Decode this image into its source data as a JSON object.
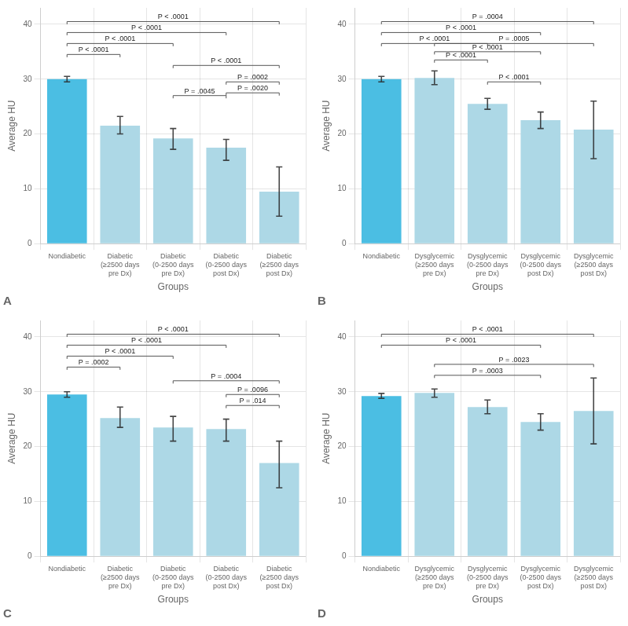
{
  "chart_data": [
    {
      "type": "bar",
      "title": "A",
      "ylabel": "Average HU",
      "xlabel": "Groups",
      "categories": [
        "Nondiabetic",
        "Diabetic\n(≥2500 days\npre Dx)",
        "Diabetic\n(0-2500 days\npre Dx)",
        "Diabetic\n(0-2500 days\npost Dx)",
        "Diabetic\n(≥2500 days\npost Dx)"
      ],
      "values": [
        30.0,
        21.5,
        19.2,
        17.5,
        9.5
      ],
      "ci_low": [
        29.5,
        20.0,
        17.2,
        15.2,
        5.0
      ],
      "ci_high": [
        30.5,
        23.2,
        21.0,
        19.0,
        14.0
      ],
      "colors": [
        "#4bbee3",
        "#add8e6",
        "#add8e6",
        "#add8e6",
        "#add8e6"
      ],
      "ylim": [
        0,
        43
      ],
      "yticks": [
        0,
        10,
        20,
        30,
        40
      ],
      "grid": true,
      "annotations": [
        {
          "x1": 0,
          "x2": 1,
          "y": 34.5,
          "label": "P < .0001"
        },
        {
          "x1": 0,
          "x2": 2,
          "y": 36.5,
          "label": "P < .0001"
        },
        {
          "x1": 0,
          "x2": 3,
          "y": 38.5,
          "label": "P < .0001"
        },
        {
          "x1": 0,
          "x2": 4,
          "y": 40.5,
          "label": "P < .0001"
        },
        {
          "x1": 2,
          "x2": 3,
          "y": 27.0,
          "label": "P = .0045"
        },
        {
          "x1": 2,
          "x2": 4,
          "y": 32.5,
          "label": "P < .0001"
        },
        {
          "x1": 3,
          "x2": 4,
          "y": 29.5,
          "label": "P = .0002"
        },
        {
          "x1": 3,
          "x2": 4,
          "y": 27.5,
          "label": "P = .0020"
        }
      ]
    },
    {
      "type": "bar",
      "title": "B",
      "ylabel": "Average HU",
      "xlabel": "Groups",
      "categories": [
        "Nondiabetic",
        "Dysglycemic\n(≥2500 days\npre Dx)",
        "Dysglycemic\n(0-2500 days\npre Dx)",
        "Dysglycemic\n(0-2500 days\npost Dx)",
        "Dysglycemic\n(≥2500 days\npost Dx)"
      ],
      "values": [
        30.0,
        30.2,
        25.5,
        22.5,
        20.8
      ],
      "ci_low": [
        29.5,
        29.0,
        24.5,
        21.0,
        15.5
      ],
      "ci_high": [
        30.5,
        31.5,
        26.5,
        24.0,
        26.0
      ],
      "colors": [
        "#4bbee3",
        "#add8e6",
        "#add8e6",
        "#add8e6",
        "#add8e6"
      ],
      "ylim": [
        0,
        43
      ],
      "yticks": [
        0,
        10,
        20,
        30,
        40
      ],
      "grid": true,
      "annotations": [
        {
          "x1": 0,
          "x2": 2,
          "y": 36.5,
          "label": "P < .0001"
        },
        {
          "x1": 0,
          "x2": 3,
          "y": 38.5,
          "label": "P < .0001"
        },
        {
          "x1": 0,
          "x2": 4,
          "y": 40.5,
          "label": "P = .0004"
        },
        {
          "x1": 1,
          "x2": 2,
          "y": 33.5,
          "label": "P < .0001"
        },
        {
          "x1": 1,
          "x2": 3,
          "y": 35.0,
          "label": "P < .0001"
        },
        {
          "x1": 1,
          "x2": 4,
          "y": 36.5,
          "label": "P = .0005"
        },
        {
          "x1": 2,
          "x2": 3,
          "y": 29.5,
          "label": "P < .0001"
        }
      ]
    },
    {
      "type": "bar",
      "title": "C",
      "ylabel": "Average HU",
      "xlabel": "Groups",
      "categories": [
        "Nondiabetic",
        "Diabetic\n(≥2500 days\npre Dx)",
        "Diabetic\n(0-2500 days\npre Dx)",
        "Diabetic\n(0-2500 days\npost Dx)",
        "Diabetic\n(≥2500 days\npost Dx)"
      ],
      "values": [
        29.5,
        25.2,
        23.5,
        23.2,
        17.0
      ],
      "ci_low": [
        29.0,
        23.5,
        21.0,
        21.0,
        12.5
      ],
      "ci_high": [
        30.0,
        27.2,
        25.5,
        25.0,
        21.0
      ],
      "colors": [
        "#4bbee3",
        "#add8e6",
        "#add8e6",
        "#add8e6",
        "#add8e6"
      ],
      "ylim": [
        0,
        43
      ],
      "yticks": [
        0,
        10,
        20,
        30,
        40
      ],
      "grid": true,
      "annotations": [
        {
          "x1": 0,
          "x2": 1,
          "y": 34.5,
          "label": "P = .0002"
        },
        {
          "x1": 0,
          "x2": 2,
          "y": 36.5,
          "label": "P < .0001"
        },
        {
          "x1": 0,
          "x2": 3,
          "y": 38.5,
          "label": "P < .0001"
        },
        {
          "x1": 0,
          "x2": 4,
          "y": 40.5,
          "label": "P < .0001"
        },
        {
          "x1": 2,
          "x2": 4,
          "y": 32.0,
          "label": "P = .0004"
        },
        {
          "x1": 3,
          "x2": 4,
          "y": 29.5,
          "label": "P = .0096"
        },
        {
          "x1": 3,
          "x2": 4,
          "y": 27.5,
          "label": "P = .014"
        }
      ]
    },
    {
      "type": "bar",
      "title": "D",
      "ylabel": "Average HU",
      "xlabel": "Groups",
      "categories": [
        "Nondiabetic",
        "Dysglycemic\n(≥2500 days\npre Dx)",
        "Dysglycemic\n(0-2500 days\npre Dx)",
        "Dysglycemic\n(0-2500 days\npost Dx)",
        "Dysglycemic\n(≥2500 days\npost Dx)"
      ],
      "values": [
        29.2,
        29.8,
        27.2,
        24.5,
        26.5
      ],
      "ci_low": [
        28.8,
        29.0,
        26.0,
        23.0,
        20.5
      ],
      "ci_high": [
        29.7,
        30.5,
        28.5,
        26.0,
        32.5
      ],
      "colors": [
        "#4bbee3",
        "#add8e6",
        "#add8e6",
        "#add8e6",
        "#add8e6"
      ],
      "ylim": [
        0,
        43
      ],
      "yticks": [
        0,
        10,
        20,
        30,
        40
      ],
      "grid": true,
      "annotations": [
        {
          "x1": 0,
          "x2": 3,
          "y": 38.5,
          "label": "P < .0001"
        },
        {
          "x1": 0,
          "x2": 4,
          "y": 40.5,
          "label": "P < .0001"
        },
        {
          "x1": 1,
          "x2": 3,
          "y": 33.0,
          "label": "P = .0003"
        },
        {
          "x1": 1,
          "x2": 4,
          "y": 35.0,
          "label": "P = .0023"
        }
      ]
    }
  ]
}
